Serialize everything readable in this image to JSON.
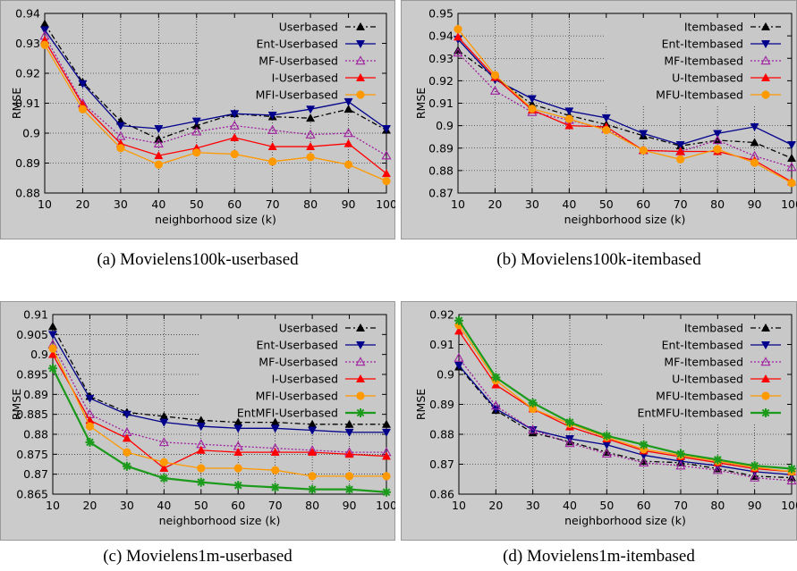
{
  "colors": {
    "plot_bg": "#c8c8c8",
    "frame_bg": "#cbcbcb",
    "black": "#000000",
    "navy": "#00008b",
    "purple": "#a020a0",
    "red": "#ff0000",
    "orange": "#ff9900",
    "green": "#1b9a1b"
  },
  "chart_data": [
    {
      "type": "line",
      "caption": "(a) Movielens100k-userbased",
      "xlabel": "neighborhood size (k)",
      "ylabel": "RMSE",
      "x": [
        10,
        20,
        30,
        40,
        50,
        60,
        70,
        80,
        90,
        100
      ],
      "xlim": [
        10,
        100
      ],
      "ylim": [
        0.88,
        0.94
      ],
      "yticks": [
        "0.88",
        "0.89",
        "0.9",
        "0.91",
        "0.92",
        "0.93",
        "0.94"
      ],
      "xticks": [
        "10",
        "20",
        "30",
        "40",
        "50",
        "60",
        "70",
        "80",
        "90",
        "100"
      ],
      "grid": true,
      "legend_position": "top-right",
      "series": [
        {
          "name": "Userbased",
          "values": [
            0.9365,
            0.917,
            0.904,
            0.898,
            0.9025,
            0.9065,
            0.9055,
            0.905,
            0.908,
            0.901
          ],
          "color": "#000000",
          "marker": "triangle-up",
          "dash": "6,3,2,3"
        },
        {
          "name": "Ent-Userbased",
          "values": [
            0.9345,
            0.9165,
            0.9025,
            0.9015,
            0.904,
            0.9065,
            0.906,
            0.908,
            0.9105,
            0.9015
          ],
          "color": "#00008b",
          "marker": "triangle-down",
          "dash": ""
        },
        {
          "name": "MF-Userbased",
          "values": [
            0.9325,
            0.91,
            0.899,
            0.8965,
            0.9005,
            0.9025,
            0.901,
            0.8995,
            0.9,
            0.8925
          ],
          "color": "#a020a0",
          "marker": "triangle-open",
          "dash": "2,2"
        },
        {
          "name": "I-Userbased",
          "values": [
            0.931,
            0.9095,
            0.8965,
            0.8925,
            0.895,
            0.8985,
            0.8955,
            0.8955,
            0.8965,
            0.8865
          ],
          "color": "#ff0000",
          "marker": "triangle-up",
          "dash": ""
        },
        {
          "name": "MFI-Userbased",
          "values": [
            0.9295,
            0.908,
            0.895,
            0.8895,
            0.8935,
            0.893,
            0.8905,
            0.892,
            0.8895,
            0.884
          ],
          "color": "#ff9900",
          "marker": "circle",
          "dash": ""
        }
      ]
    },
    {
      "type": "line",
      "caption": "(b) Movielens100k-itembased",
      "xlabel": "neighborhood size (k)",
      "ylabel": "RMSE",
      "x": [
        10,
        20,
        30,
        40,
        50,
        60,
        70,
        80,
        90,
        100
      ],
      "xlim": [
        10,
        100
      ],
      "ylim": [
        0.87,
        0.95
      ],
      "yticks": [
        "0.87",
        "0.88",
        "0.89",
        "0.9",
        "0.91",
        "0.92",
        "0.93",
        "0.94",
        "0.95"
      ],
      "xticks": [
        "10",
        "20",
        "30",
        "40",
        "50",
        "60",
        "70",
        "80",
        "90",
        "100"
      ],
      "grid": true,
      "legend_position": "top-right",
      "series": [
        {
          "name": "Itembased",
          "values": [
            0.9335,
            0.9215,
            0.9095,
            0.9045,
            0.9005,
            0.8955,
            0.891,
            0.8935,
            0.8925,
            0.8855
          ],
          "color": "#000000",
          "marker": "triangle-up",
          "dash": "6,3,2,3"
        },
        {
          "name": "Ent-Itembased",
          "values": [
            0.9385,
            0.9205,
            0.912,
            0.9065,
            0.9035,
            0.8965,
            0.8915,
            0.8965,
            0.8995,
            0.8915
          ],
          "color": "#00008b",
          "marker": "triangle-down",
          "dash": ""
        },
        {
          "name": "MF-Itembased",
          "values": [
            0.9325,
            0.9155,
            0.906,
            0.9025,
            0.8985,
            0.889,
            0.8885,
            0.8935,
            0.8865,
            0.8815
          ],
          "color": "#a020a0",
          "marker": "triangle-open",
          "dash": "2,2"
        },
        {
          "name": "U-Itembased",
          "values": [
            0.9395,
            0.9215,
            0.907,
            0.9,
            0.8995,
            0.889,
            0.8885,
            0.8885,
            0.8845,
            0.875
          ],
          "color": "#ff0000",
          "marker": "triangle-up",
          "dash": ""
        },
        {
          "name": "MFU-Itembased",
          "values": [
            0.943,
            0.9225,
            0.9075,
            0.903,
            0.898,
            0.889,
            0.885,
            0.8895,
            0.8835,
            0.8745
          ],
          "color": "#ff9900",
          "marker": "circle",
          "dash": ""
        }
      ]
    },
    {
      "type": "line",
      "caption": "(c) Movielens1m-userbased",
      "xlabel": "neighborhood size (k)",
      "ylabel": "RMSE",
      "x": [
        10,
        20,
        30,
        40,
        50,
        60,
        70,
        80,
        90,
        100
      ],
      "xlim": [
        10,
        100
      ],
      "ylim": [
        0.865,
        0.91
      ],
      "yticks": [
        "0.865",
        "0.87",
        "0.875",
        "0.88",
        "0.885",
        "0.89",
        "0.895",
        "0.9",
        "0.905",
        "0.91"
      ],
      "xticks": [
        "10",
        "20",
        "30",
        "40",
        "50",
        "60",
        "70",
        "80",
        "90",
        "100"
      ],
      "grid": true,
      "legend_position": "top-right",
      "series": [
        {
          "name": "Userbased",
          "values": [
            0.907,
            0.8895,
            0.8855,
            0.8845,
            0.8835,
            0.883,
            0.883,
            0.8825,
            0.8825,
            0.8825
          ],
          "color": "#000000",
          "marker": "triangle-up",
          "dash": "6,3,2,3"
        },
        {
          "name": "Ent-Userbased",
          "values": [
            0.905,
            0.889,
            0.885,
            0.883,
            0.882,
            0.8815,
            0.8815,
            0.881,
            0.8805,
            0.8805
          ],
          "color": "#00008b",
          "marker": "triangle-down",
          "dash": ""
        },
        {
          "name": "MF-Userbased",
          "values": [
            0.9025,
            0.885,
            0.8805,
            0.878,
            0.8775,
            0.877,
            0.8765,
            0.876,
            0.8755,
            0.8755
          ],
          "color": "#a020a0",
          "marker": "triangle-open",
          "dash": "2,2"
        },
        {
          "name": "I-Userbased",
          "values": [
            0.9,
            0.8835,
            0.879,
            0.8715,
            0.876,
            0.8755,
            0.8755,
            0.8755,
            0.875,
            0.8745
          ],
          "color": "#ff0000",
          "marker": "triangle-up",
          "dash": ""
        },
        {
          "name": "MFI-Userbased",
          "values": [
            0.9015,
            0.882,
            0.8755,
            0.873,
            0.8715,
            0.8715,
            0.871,
            0.8695,
            0.8695,
            0.8695
          ],
          "color": "#ff9900",
          "marker": "circle",
          "dash": ""
        },
        {
          "name": "EntMFI-Userbased",
          "values": [
            0.8965,
            0.878,
            0.872,
            0.869,
            0.868,
            0.8672,
            0.8667,
            0.8662,
            0.8662,
            0.8655
          ],
          "color": "#1b9a1b",
          "marker": "asterisk",
          "dash": ""
        }
      ]
    },
    {
      "type": "line",
      "caption": "(d) Movielens1m-itembased",
      "xlabel": "neighborhood size (k)",
      "ylabel": "RMSE",
      "x": [
        10,
        20,
        30,
        40,
        50,
        60,
        70,
        80,
        90,
        100
      ],
      "xlim": [
        10,
        100
      ],
      "ylim": [
        0.86,
        0.92
      ],
      "yticks": [
        "0.86",
        "0.87",
        "0.88",
        "0.89",
        "0.9",
        "0.91",
        "0.92"
      ],
      "xticks": [
        "10",
        "20",
        "30",
        "40",
        "50",
        "60",
        "70",
        "80",
        "90",
        "100"
      ],
      "grid": true,
      "legend_position": "top-right",
      "series": [
        {
          "name": "Itembased",
          "values": [
            0.9025,
            0.888,
            0.8805,
            0.8775,
            0.874,
            0.871,
            0.8705,
            0.8685,
            0.866,
            0.8655
          ],
          "color": "#000000",
          "marker": "triangle-up",
          "dash": "6,3,2,3"
        },
        {
          "name": "Ent-Itembased",
          "values": [
            0.903,
            0.8885,
            0.8815,
            0.8785,
            0.8765,
            0.873,
            0.871,
            0.8695,
            0.8675,
            0.8665
          ],
          "color": "#00008b",
          "marker": "triangle-down",
          "dash": ""
        },
        {
          "name": "MF-Itembased",
          "values": [
            0.9055,
            0.8895,
            0.8815,
            0.877,
            0.8735,
            0.8705,
            0.8695,
            0.868,
            0.8655,
            0.8645
          ],
          "color": "#a020a0",
          "marker": "triangle-open",
          "dash": "2,2"
        },
        {
          "name": "U-Itembased",
          "values": [
            0.9145,
            0.8965,
            0.8885,
            0.8825,
            0.8785,
            0.8745,
            0.8725,
            0.8705,
            0.8685,
            0.8675
          ],
          "color": "#ff0000",
          "marker": "triangle-up",
          "dash": ""
        },
        {
          "name": "MFU-Itembased",
          "values": [
            0.9165,
            0.898,
            0.8885,
            0.8835,
            0.879,
            0.875,
            0.873,
            0.871,
            0.869,
            0.8675
          ],
          "color": "#ff9900",
          "marker": "circle",
          "dash": ""
        },
        {
          "name": "EntMFU-Itembased",
          "values": [
            0.918,
            0.899,
            0.8905,
            0.884,
            0.8795,
            0.8765,
            0.8735,
            0.8715,
            0.8695,
            0.8685
          ],
          "color": "#1b9a1b",
          "marker": "asterisk",
          "dash": ""
        }
      ]
    }
  ]
}
